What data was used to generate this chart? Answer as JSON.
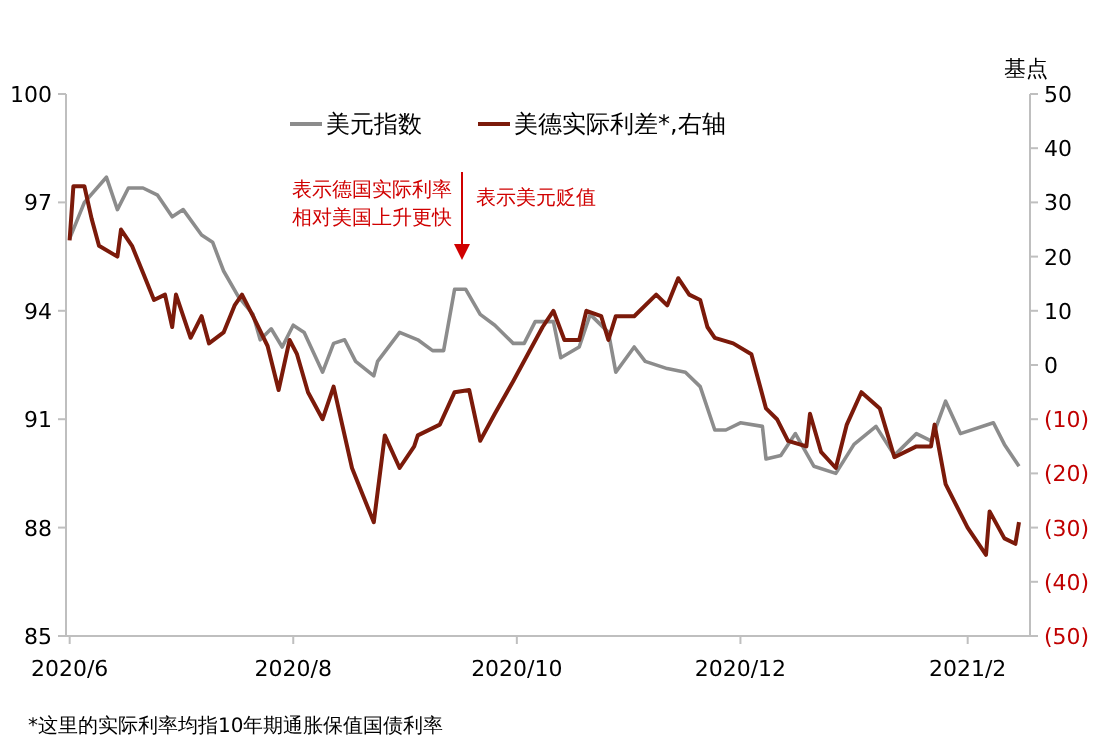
{
  "chart_data": {
    "type": "line",
    "y2label": "基点",
    "legend": "top",
    "grid": false,
    "xlim": [
      "2020-05-31",
      "2021-02-18"
    ],
    "xticks": [
      {
        "value": "2020-06-01",
        "label": "2020/6"
      },
      {
        "value": "2020-08-01",
        "label": "2020/8"
      },
      {
        "value": "2020-10-01",
        "label": "2020/10"
      },
      {
        "value": "2020-12-01",
        "label": "2020/12"
      },
      {
        "value": "2021-02-01",
        "label": "2021/2"
      }
    ],
    "ylim": [
      85,
      100
    ],
    "yticks": [
      85,
      88,
      91,
      94,
      97,
      100
    ],
    "y2lim": [
      -50,
      50
    ],
    "y2ticks": [
      {
        "value": -50,
        "label": "(50)"
      },
      {
        "value": -40,
        "label": "(40)"
      },
      {
        "value": -30,
        "label": "(30)"
      },
      {
        "value": -20,
        "label": "(20)"
      },
      {
        "value": -10,
        "label": "(10)"
      },
      0,
      10,
      20,
      30,
      40,
      50
    ],
    "annotations": [
      "表示德国实际利率相对美国上升更快",
      "表示美元贬值",
      "*这里的实际利率均指10年期通胀保值国债利率"
    ],
    "series": [
      {
        "name": "美元指数",
        "color": "#8c8c8c",
        "x": [
          "2020-06-01",
          "2020-06-05",
          "2020-06-11",
          "2020-06-14",
          "2020-06-17",
          "2020-06-21",
          "2020-06-25",
          "2020-06-29",
          "2020-07-02",
          "2020-07-07",
          "2020-07-10",
          "2020-07-13",
          "2020-07-17",
          "2020-07-21",
          "2020-07-23",
          "2020-07-26",
          "2020-07-29",
          "2020-08-01",
          "2020-08-04",
          "2020-08-09",
          "2020-08-12",
          "2020-08-15",
          "2020-08-18",
          "2020-08-23",
          "2020-08-24",
          "2020-08-30",
          "2020-09-04",
          "2020-09-08",
          "2020-09-11",
          "2020-09-14",
          "2020-09-17",
          "2020-09-21",
          "2020-09-25",
          "2020-09-30",
          "2020-10-03",
          "2020-10-06",
          "2020-10-11",
          "2020-10-13",
          "2020-10-18",
          "2020-10-21",
          "2020-10-26",
          "2020-10-28",
          "2020-11-02",
          "2020-11-05",
          "2020-11-11",
          "2020-11-16",
          "2020-11-20",
          "2020-11-24",
          "2020-11-27",
          "2020-12-01",
          "2020-12-07",
          "2020-12-08",
          "2020-12-12",
          "2020-12-16",
          "2020-12-21",
          "2020-12-27",
          "2021-01-01",
          "2021-01-07",
          "2021-01-12",
          "2021-01-18",
          "2021-01-22",
          "2021-01-26",
          "2021-01-30",
          "2021-02-08",
          "2021-02-11",
          "2021-02-15"
        ],
        "values": [
          96.0,
          97.0,
          97.7,
          96.8,
          97.4,
          97.4,
          97.2,
          96.6,
          96.8,
          96.1,
          95.9,
          95.1,
          94.4,
          93.9,
          93.2,
          93.5,
          93.0,
          93.6,
          93.4,
          92.3,
          93.1,
          93.2,
          92.6,
          92.2,
          92.6,
          93.4,
          93.2,
          92.9,
          92.9,
          94.6,
          94.6,
          93.9,
          93.6,
          93.1,
          93.1,
          93.7,
          93.7,
          92.7,
          93.0,
          93.9,
          93.4,
          92.3,
          93.0,
          92.6,
          92.4,
          92.3,
          91.9,
          90.7,
          90.7,
          90.9,
          90.8,
          89.9,
          90.0,
          90.6,
          89.7,
          89.5,
          90.3,
          90.8,
          90.0,
          90.6,
          90.4,
          91.5,
          90.6,
          90.9,
          90.3,
          89.7
        ]
      },
      {
        "name": "美德实际利差*,右轴",
        "color": "#7b1a0a",
        "axis": "y2",
        "x": [
          "2020-06-01",
          "2020-06-02",
          "2020-06-05",
          "2020-06-07",
          "2020-06-09",
          "2020-06-14",
          "2020-06-15",
          "2020-06-18",
          "2020-06-21",
          "2020-06-24",
          "2020-06-27",
          "2020-06-29",
          "2020-06-30",
          "2020-07-04",
          "2020-07-07",
          "2020-07-09",
          "2020-07-13",
          "2020-07-16",
          "2020-07-18",
          "2020-07-21",
          "2020-07-25",
          "2020-07-28",
          "2020-07-31",
          "2020-08-02",
          "2020-08-05",
          "2020-08-09",
          "2020-08-12",
          "2020-08-17",
          "2020-08-20",
          "2020-08-23",
          "2020-08-26",
          "2020-08-30",
          "2020-09-03",
          "2020-09-04",
          "2020-09-10",
          "2020-09-14",
          "2020-09-18",
          "2020-09-21",
          "2020-09-25",
          "2020-09-30",
          "2020-10-04",
          "2020-10-08",
          "2020-10-11",
          "2020-10-14",
          "2020-10-18",
          "2020-10-20",
          "2020-10-24",
          "2020-10-26",
          "2020-10-28",
          "2020-11-02",
          "2020-11-08",
          "2020-11-11",
          "2020-11-14",
          "2020-11-17",
          "2020-11-20",
          "2020-11-22",
          "2020-11-24",
          "2020-11-29",
          "2020-12-04",
          "2020-12-08",
          "2020-12-11",
          "2020-12-14",
          "2020-12-19",
          "2020-12-20",
          "2020-12-23",
          "2020-12-27",
          "2020-12-30",
          "2021-01-03",
          "2021-01-08",
          "2021-01-12",
          "2021-01-18",
          "2021-01-22",
          "2021-01-23",
          "2021-01-26",
          "2021-02-01",
          "2021-02-06",
          "2021-02-07",
          "2021-02-11",
          "2021-02-14",
          "2021-02-15"
        ],
        "values": [
          23,
          33,
          33,
          27,
          22,
          20,
          25,
          22,
          17,
          12,
          13,
          7,
          13,
          5,
          9,
          4,
          6,
          11,
          13,
          9,
          3.5,
          -4.6,
          4.6,
          2,
          -5,
          -10,
          -4,
          -19,
          -24,
          -29,
          -13,
          -19,
          -15,
          -13,
          -11,
          -5,
          -4.6,
          -14,
          -9,
          -3,
          2,
          7,
          10,
          4.6,
          4.6,
          10,
          9,
          4.6,
          9,
          9,
          13,
          11,
          16,
          13,
          12,
          7,
          5,
          4,
          2,
          -8,
          -10,
          -14,
          -15,
          -9,
          -16,
          -19,
          -11,
          -5,
          -8,
          -17,
          -15,
          -15,
          -11,
          -22,
          -30,
          -35,
          -27,
          -32,
          -33,
          -29
        ]
      }
    ]
  }
}
